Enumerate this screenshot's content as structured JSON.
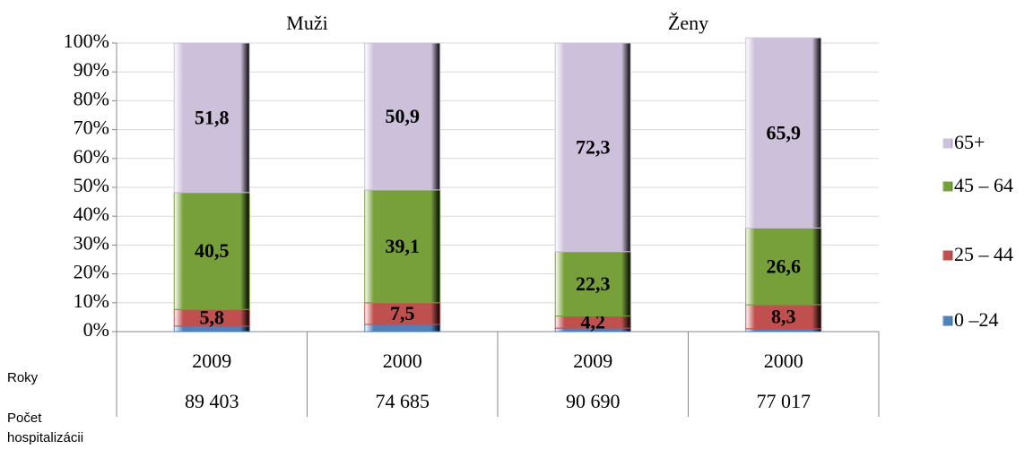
{
  "chart_data": {
    "type": "stacked_bar",
    "groups": [
      {
        "name": "Muži"
      },
      {
        "name": "Ženy"
      }
    ],
    "categories": [
      "2009",
      "2000",
      "2009",
      "2000"
    ],
    "row_labels": [
      "Roky",
      "Počet hospitalizácii"
    ],
    "counts": [
      {
        "value": 89403,
        "label": "89 403"
      },
      {
        "value": 74685,
        "label": "74 685"
      },
      {
        "value": 90690,
        "label": "90 690"
      },
      {
        "value": 77017,
        "label": "77 017"
      }
    ],
    "series": [
      {
        "name": "0 –24",
        "color": "#4f81bd",
        "values": [
          1.9,
          2.5,
          1.2,
          1.0
        ]
      },
      {
        "name": "25 – 44",
        "color": "#c0504d",
        "values": [
          5.8,
          7.5,
          4.2,
          8.3
        ],
        "value_labels": [
          "5,8",
          "7,5",
          "4,2",
          "8,3"
        ]
      },
      {
        "name": "45 – 64",
        "color": "#77a03a",
        "values": [
          40.5,
          39.1,
          22.3,
          26.6
        ],
        "value_labels": [
          "40,5",
          "39,1",
          "22,3",
          "26,6"
        ]
      },
      {
        "name": "65+",
        "color": "#ccc0da",
        "values": [
          51.8,
          50.9,
          72.3,
          65.9
        ],
        "value_labels": [
          "51,8",
          "50,9",
          "72,3",
          "65,9"
        ]
      }
    ],
    "ylim": [
      0,
      100
    ],
    "yticks": [
      {
        "value": 0,
        "label": "0%"
      },
      {
        "value": 10,
        "label": "10%"
      },
      {
        "value": 20,
        "label": "20%"
      },
      {
        "value": 30,
        "label": "30%"
      },
      {
        "value": 40,
        "label": "40%"
      },
      {
        "value": 50,
        "label": "50%"
      },
      {
        "value": 60,
        "label": "60%"
      },
      {
        "value": 70,
        "label": "70%"
      },
      {
        "value": 80,
        "label": "80%"
      },
      {
        "value": 90,
        "label": "90%"
      },
      {
        "value": 100,
        "label": "100%"
      }
    ],
    "grid": true,
    "legend": "right"
  }
}
